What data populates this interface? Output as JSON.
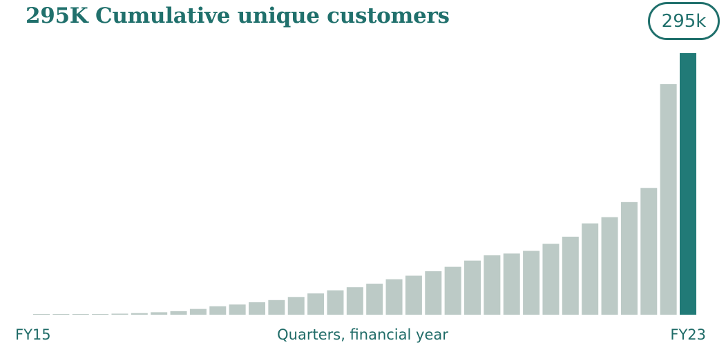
{
  "chart_data": {
    "type": "bar",
    "title": "295K Cumulative unique customers",
    "highlight_label": "295k",
    "xlabel": "Quarters, financial year",
    "ylabel": "",
    "x_start_label": "FY15",
    "x_end_label": "FY23",
    "ylim": [
      0,
      310
    ],
    "grid": false,
    "legend": "none",
    "colors": {
      "bar": "#bccac6",
      "highlight": "#217a77",
      "text": "#20706c"
    },
    "values": [
      0.1,
      0.2,
      0.4,
      0.8,
      1.2,
      1.8,
      2.8,
      4,
      6.5,
      9.5,
      11.5,
      14,
      16.5,
      20,
      24,
      27.5,
      31,
      35,
      40,
      44,
      49,
      54,
      61,
      67,
      69,
      72,
      80,
      88,
      103,
      110,
      127,
      143,
      260,
      295
    ]
  }
}
